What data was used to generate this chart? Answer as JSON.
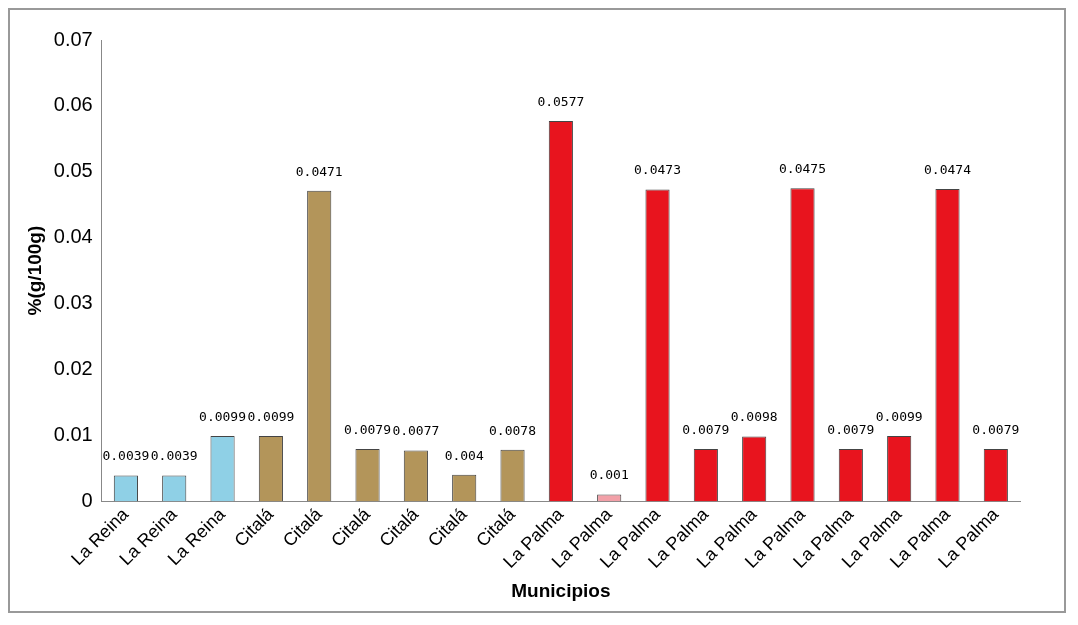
{
  "chart_data": {
    "type": "bar",
    "xlabel": "Municipios",
    "ylabel": "%(g/100g)",
    "categories": [
      "La Reina",
      "La Reina",
      "La Reina",
      "Citalá",
      "Citalá",
      "Citalá",
      "Citalá",
      "Citalá",
      "Citalá",
      "La Palma",
      "La Palma",
      "La Palma",
      "La Palma",
      "La Palma",
      "La Palma",
      "La Palma",
      "La Palma",
      "La Palma",
      "La Palma"
    ],
    "values": [
      0.0039,
      0.0039,
      0.0099,
      0.0099,
      0.0471,
      0.0079,
      0.0077,
      0.004,
      0.0078,
      0.0577,
      0.001,
      0.0473,
      0.0079,
      0.0098,
      0.0475,
      0.0079,
      0.0099,
      0.0474,
      0.0079
    ],
    "colors": [
      "#8fd0e6",
      "#8fd0e6",
      "#8fd0e6",
      "#b3955a",
      "#b3955a",
      "#b3955a",
      "#b3955a",
      "#b3955a",
      "#b3955a",
      "#e8141e",
      "#f2a0a8",
      "#e8141e",
      "#e8141e",
      "#e8141e",
      "#e8141e",
      "#e8141e",
      "#e8141e",
      "#e8141e",
      "#e8141e"
    ],
    "ylim": [
      0,
      0.07
    ],
    "yticks": [
      0,
      0.01,
      0.02,
      0.03,
      0.04,
      0.05,
      0.06,
      0.07
    ],
    "data_labels": true,
    "grid": false,
    "legend": false
  }
}
